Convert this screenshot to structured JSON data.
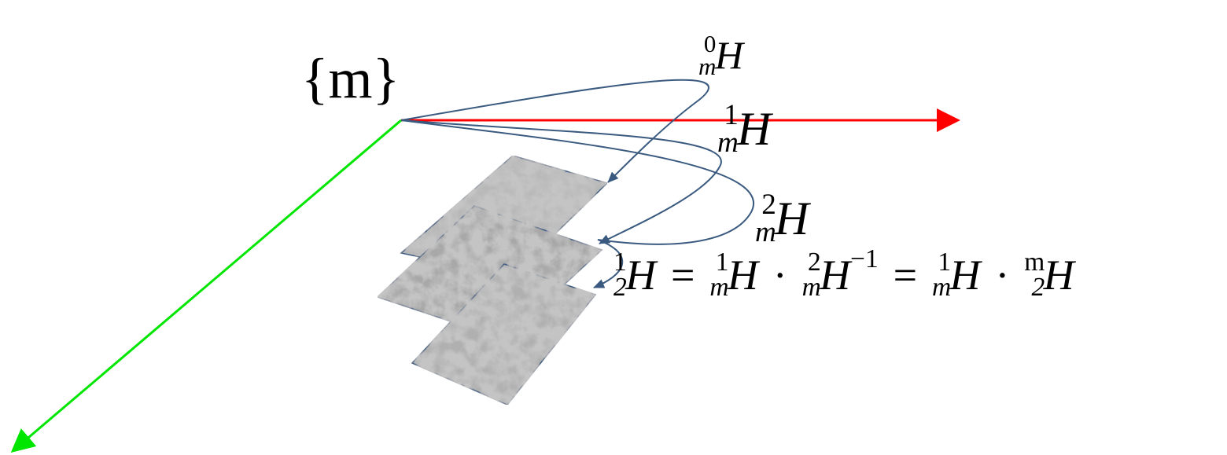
{
  "frame_label": "{m}",
  "homographies": [
    {
      "sup": "0",
      "sub": "m",
      "symbol": "H"
    },
    {
      "sup": "1",
      "sub": "m",
      "symbol": "H"
    },
    {
      "sup": "2",
      "sub": "m",
      "symbol": "H"
    }
  ],
  "equation": [
    {
      "sup": "1",
      "sub": "2",
      "symbol": "H"
    },
    "=",
    {
      "sup": "1",
      "sub": "m",
      "symbol": "H"
    },
    "·",
    {
      "sup": "2",
      "sub": "m",
      "symbol": "H",
      "power": "−1"
    },
    "=",
    {
      "sup": "1",
      "sub": "m",
      "symbol": "H"
    },
    "·",
    {
      "sup": "m",
      "sub": "2",
      "symbol": "H"
    }
  ]
}
